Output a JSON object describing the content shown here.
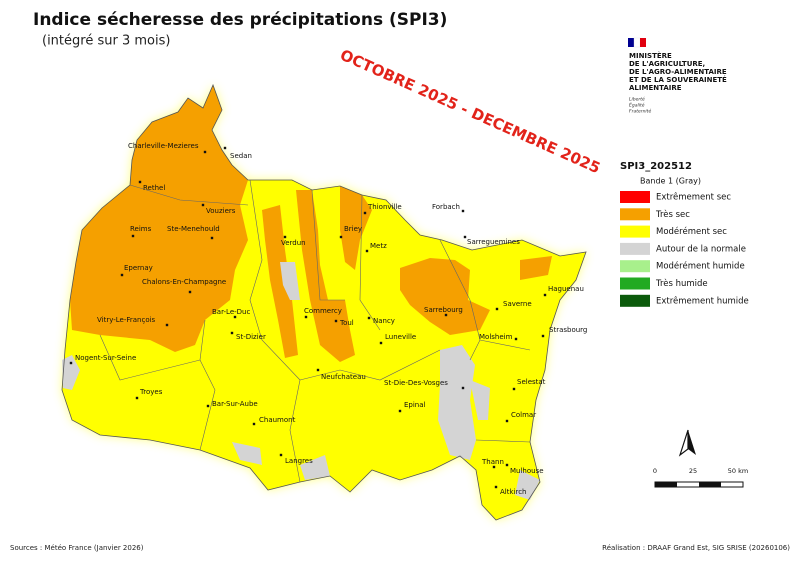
{
  "title": "Indice sécheresse des précipitations (SPI3)",
  "subtitle": "(intégré sur 3 mois)",
  "period": "OCTOBRE 2025 - DECEMBRE 2025",
  "ministry": {
    "lines": [
      "MINISTÈRE",
      "DE L'AGRICULTURE,",
      "DE L'AGRO-ALIMENTAIRE",
      "ET DE LA SOUVERAINETÉ",
      "ALIMENTAIRE"
    ],
    "motto": [
      "Liberté",
      "Égalité",
      "Fraternité"
    ]
  },
  "legend": {
    "title": "SPI3_202512",
    "band": "Bande 1 (Gray)",
    "items": [
      {
        "label": "Extrêmement sec",
        "color": "#ff0000"
      },
      {
        "label": "Très sec",
        "color": "#f5a000"
      },
      {
        "label": "Modérément sec",
        "color": "#ffff00"
      },
      {
        "label": "Autour de la normale",
        "color": "#d4d4d4"
      },
      {
        "label": "Modérément humide",
        "color": "#a8f08c"
      },
      {
        "label": "Très humide",
        "color": "#22aa22"
      },
      {
        "label": "Extrêmement humide",
        "color": "#0b5a0b"
      }
    ]
  },
  "cities": [
    "Charleville-Mezieres",
    "Sedan",
    "Rethel",
    "Vouziers",
    "Reims",
    "Ste-Menehould",
    "Verdun",
    "Epernay",
    "Chalons-En-Champagne",
    "Vitry-Le-François",
    "Bar-Le-Duc",
    "Commercy",
    "Toul",
    "Nancy",
    "St-Dizier",
    "Briey",
    "Metz",
    "Thionville",
    "Forbach",
    "Sarreguemines",
    "Haguenau",
    "Saverne",
    "Sarrebourg",
    "Molsheim",
    "Strasbourg",
    "Luneville",
    "Nogent-Sur-Seine",
    "Neufchateau",
    "St-Die-Des-Vosges",
    "Selestat",
    "Troyes",
    "Bar-Sur-Aube",
    "Epinal",
    "Colmar",
    "Chaumont",
    "Langres",
    "Thann",
    "Mulhouse",
    "Altkirch"
  ],
  "scale": [
    "0",
    "25",
    "50 km"
  ],
  "sources": "Sources : Météo France (Janvier 2026)",
  "credit": "Réalisation : DRAAF Grand Est, SIG SRISE (20260106)"
}
